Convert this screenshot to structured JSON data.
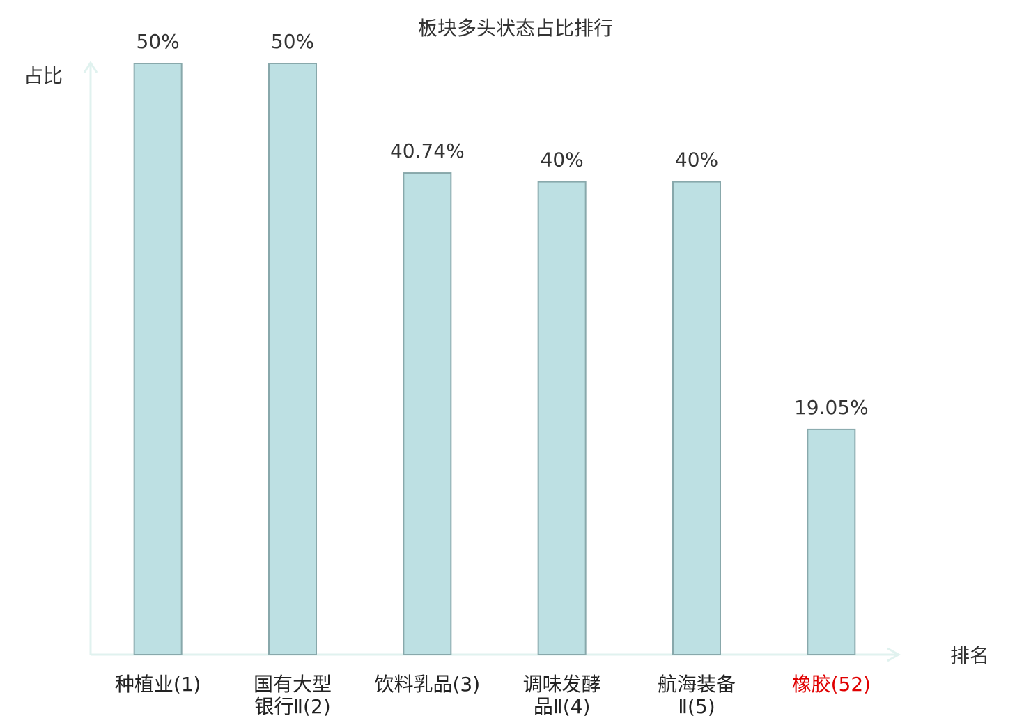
{
  "chart_data": {
    "type": "bar",
    "title": "板块多头状态占比排行",
    "y_axis_label": "占比",
    "x_axis_label": "排名",
    "categories": [
      "种植业(1)",
      "国有大型\n银行Ⅱ(2)",
      "饮料乳品(3)",
      "调味发酵\n品Ⅱ(4)",
      "航海装备\nⅡ(5)",
      "橡胶(52)"
    ],
    "values": [
      50,
      50,
      40.74,
      40,
      40,
      19.05
    ],
    "value_labels": [
      "50%",
      "50%",
      "40.74%",
      "40%",
      "40%",
      "19.05%"
    ],
    "category_label_colors": [
      "#222222",
      "#222222",
      "#222222",
      "#222222",
      "#222222",
      "#e00000"
    ],
    "color": "#bde0e3",
    "border_color": "#88a8ab",
    "axis_color": "#e0f2ef",
    "ylim": [
      0,
      50
    ]
  }
}
